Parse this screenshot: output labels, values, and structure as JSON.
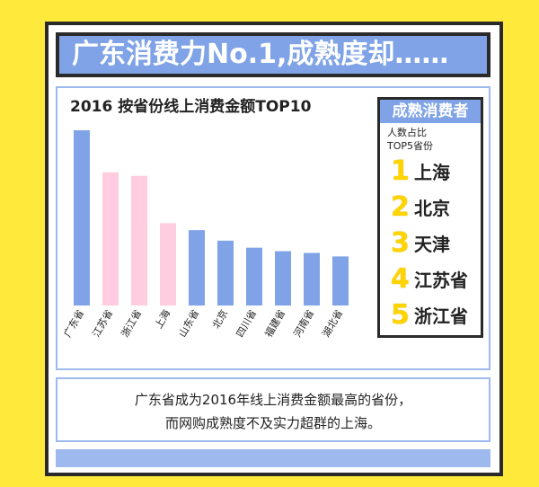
{
  "header": {
    "title": "广东消费力No.1,成熟度却……"
  },
  "chart_data": {
    "type": "bar",
    "title": "2016 按省份线上消费金额TOP10",
    "categories": [
      "广东省",
      "江苏省",
      "浙江省",
      "上海",
      "山东省",
      "北京",
      "四川省",
      "福建省",
      "河南省",
      "湖北省"
    ],
    "values": [
      100,
      76,
      74,
      47,
      43,
      37,
      33,
      31,
      30,
      28
    ],
    "colors": [
      "#7FA3E6",
      "#FFCCE0",
      "#FFCCE0",
      "#FFCCE0",
      "#7FA3E6",
      "#7FA3E6",
      "#7FA3E6",
      "#7FA3E6",
      "#7FA3E6",
      "#7FA3E6"
    ],
    "ylim": [
      0,
      100
    ]
  },
  "legend": {
    "title": "成熟消费者",
    "subtitle_line1": "人数占比",
    "subtitle_line2": "TOP5省份",
    "items": [
      {
        "rank": "1",
        "name": "上海"
      },
      {
        "rank": "2",
        "name": "北京"
      },
      {
        "rank": "3",
        "name": "天津"
      },
      {
        "rank": "4",
        "name": "江苏省"
      },
      {
        "rank": "5",
        "name": "浙江省"
      }
    ]
  },
  "footer": {
    "line1": "广东省成为2016年线上消费金额最高的省份，",
    "line2": "而网购成熟度不及实力超群的上海。"
  },
  "colors": {
    "background": "#FFE93B",
    "accent_blue": "#7FA3E6",
    "pink": "#FFCCE0",
    "rank_yellow": "#FFD400"
  }
}
